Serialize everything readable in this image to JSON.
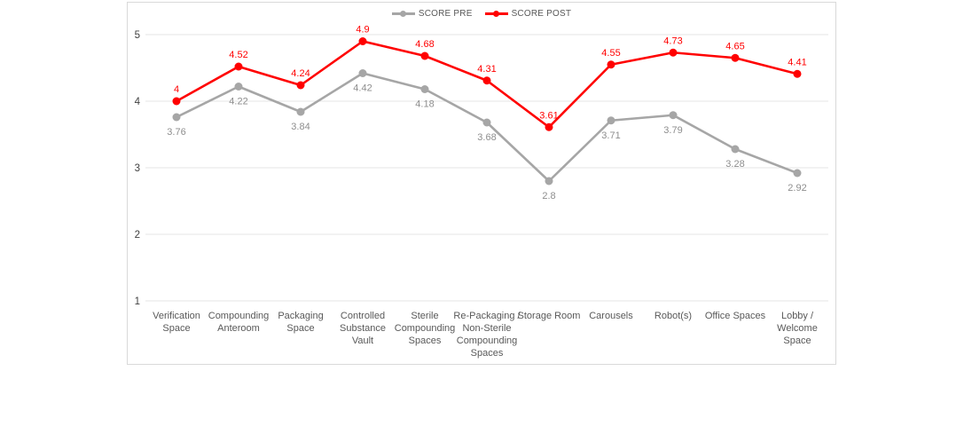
{
  "chart_data": {
    "type": "line",
    "title": "",
    "xlabel": "",
    "ylabel": "",
    "ylim": [
      1,
      5
    ],
    "yticks": [
      1,
      2,
      3,
      4,
      5
    ],
    "grid": true,
    "legend_position": "top-center",
    "categories": [
      "Verification Space",
      "Compounding Anteroom",
      "Packaging Space",
      "Controlled Substance Vault",
      "Sterile Compounding Spaces",
      "Re-Packaging / Non-Sterile Compounding Spaces",
      "Storage Room",
      "Carousels",
      "Robot(s)",
      "Office Spaces",
      "Lobby / Welcome Space"
    ],
    "series": [
      {
        "name": "SCORE PRE",
        "color": "#a6a6a6",
        "label_color": "#8e8e8e",
        "label_position": "below",
        "values": [
          3.76,
          4.22,
          3.84,
          4.42,
          4.18,
          3.68,
          2.8,
          3.71,
          3.79,
          3.28,
          2.92
        ]
      },
      {
        "name": "SCORE POST",
        "color": "#ff0000",
        "label_color": "#ff0000",
        "label_position": "above",
        "values": [
          4,
          4.52,
          4.24,
          4.9,
          4.68,
          4.31,
          3.61,
          4.55,
          4.73,
          4.65,
          4.41
        ]
      }
    ],
    "axis_colors": {
      "tick_label": "#404040",
      "category_label": "#595959",
      "gridline": "#e4e4e4",
      "frame_border": "#d9d9d9"
    }
  }
}
